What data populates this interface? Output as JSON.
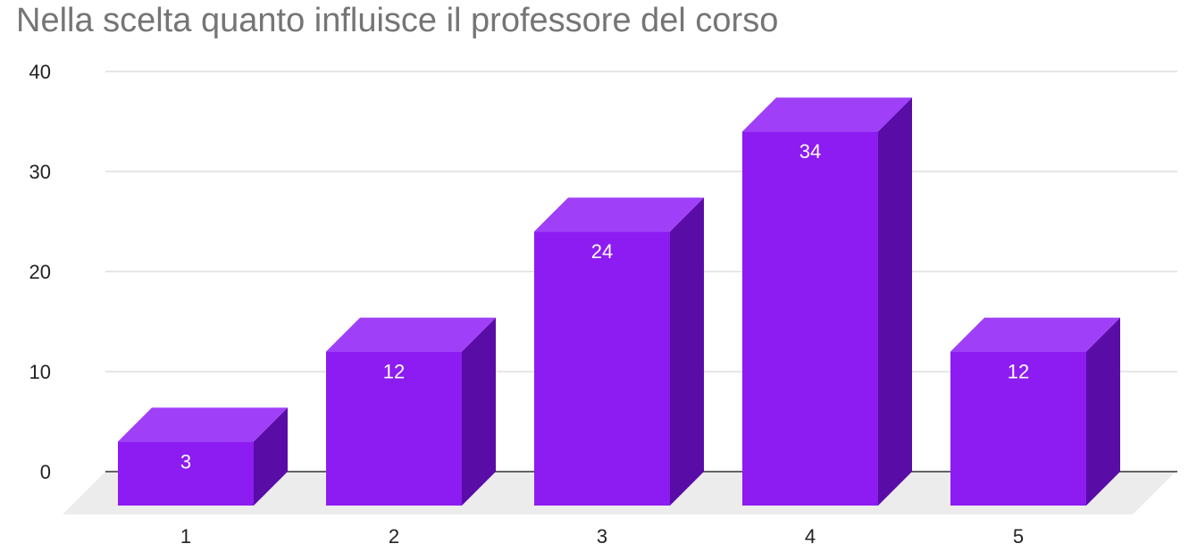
{
  "chart_data": {
    "type": "bar",
    "title": "Nella scelta quanto influisce il professore del corso",
    "categories": [
      "1",
      "2",
      "3",
      "4",
      "5"
    ],
    "values": [
      3,
      12,
      24,
      34,
      12
    ],
    "data_labels": [
      "3",
      "12",
      "24",
      "34",
      "12"
    ],
    "yticks": [
      0,
      10,
      20,
      30,
      40
    ],
    "ylim": [
      0,
      40
    ],
    "grid": true,
    "legend": "none",
    "style": "3d",
    "colors": {
      "bar_front": "#8c1cf2",
      "bar_top": "#9f40f8",
      "bar_side": "#5a0ca6",
      "floor": "#ececec",
      "grid": "#cccccc",
      "axis": "#333333"
    }
  }
}
